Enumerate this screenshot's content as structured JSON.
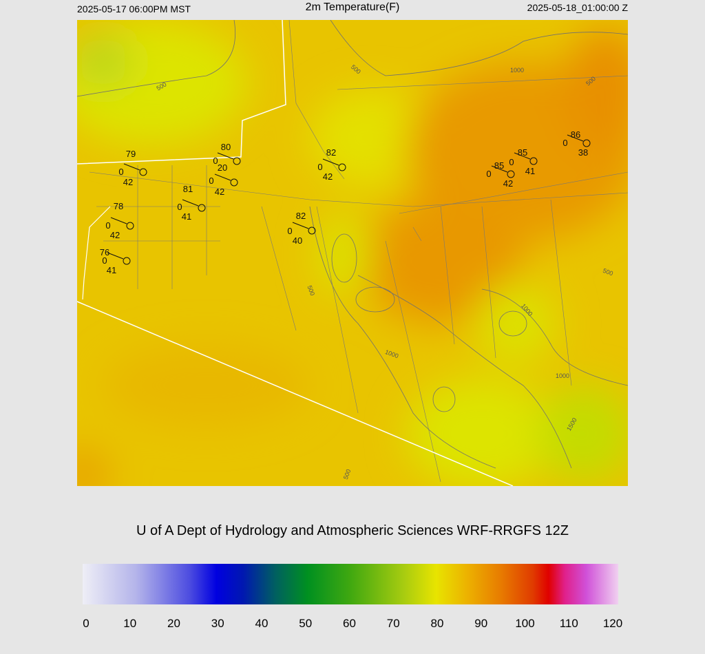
{
  "header": {
    "left": "2025-05-17 06:00PM MST",
    "title": "2m Temperature(F)",
    "right": "2025-05-18_01:00:00 Z"
  },
  "stations": [
    {
      "temp": "79",
      "wind": "0",
      "dew": "42"
    },
    {
      "temp": "80",
      "wind": "0",
      "dew": "20"
    },
    {
      "wind": "0",
      "dew": "42"
    },
    {
      "temp": "82",
      "wind": "0",
      "dew": "42"
    },
    {
      "temp": "81",
      "wind": "0",
      "dew": "41"
    },
    {
      "temp": "82",
      "wind": "0",
      "dew": "40"
    },
    {
      "temp": "78",
      "wind": "0",
      "dew": "42"
    },
    {
      "temp": "76",
      "wind": "0",
      "dew": "41"
    },
    {
      "temp": "85",
      "wind": "0",
      "dew": "42"
    },
    {
      "temp": "85",
      "wind": "0",
      "dew": "41"
    },
    {
      "temp": "86",
      "wind": "0",
      "dew": "38"
    }
  ],
  "contour_labels": [
    "500",
    "500",
    "1000",
    "500",
    "500",
    "1000",
    "1000",
    "1000",
    "1500",
    "500",
    "500"
  ],
  "footer": "U of A Dept of Hydrology and Atmospheric Sciences WRF-RRGFS 12Z",
  "colorbar": {
    "ticks": [
      0,
      10,
      20,
      30,
      40,
      50,
      60,
      70,
      80,
      90,
      100,
      110,
      120
    ]
  }
}
